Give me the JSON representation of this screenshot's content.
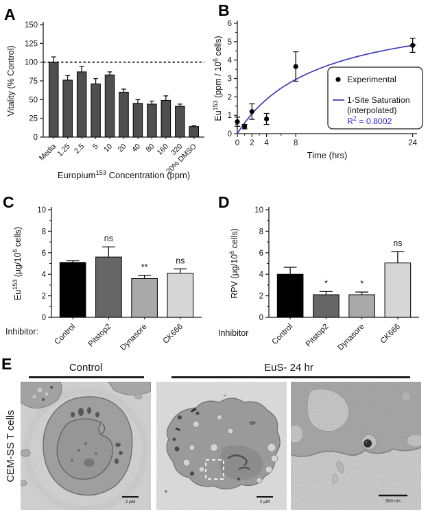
{
  "figure": {
    "background": "#ffffff",
    "axis_color": "#1a1a1a"
  },
  "panel_labels": {
    "A": "A",
    "B": "B",
    "C": "C",
    "D": "D",
    "E": "E"
  },
  "chart_data": [
    {
      "id": "A",
      "type": "bar",
      "ylabel": "Vitality (% Control)",
      "xlabel": "Europium^{153} Concentration (ppm)",
      "categories": [
        "Media",
        "1.25",
        "2.5",
        "5",
        "10",
        "20",
        "40",
        "80",
        "160",
        "320",
        "20% DMSO"
      ],
      "values": [
        100,
        76,
        87,
        71,
        83,
        60,
        45,
        44,
        49,
        41,
        14
      ],
      "errors": [
        7,
        6,
        7,
        7,
        4,
        4,
        5,
        4,
        6,
        3,
        1
      ],
      "ylim": [
        0,
        150
      ],
      "yticks": [
        0,
        25,
        50,
        75,
        100,
        125,
        150
      ],
      "bar_color": "#4f4f4f",
      "reference_line_y": 100,
      "grid": false
    },
    {
      "id": "B",
      "type": "scatter",
      "ylabel": "Eu^{153} (ppm / 10^{6} cells)",
      "xlabel": "Time (hrs)",
      "x": [
        0,
        1,
        2,
        4,
        8,
        24
      ],
      "y": [
        0.65,
        0.38,
        1.2,
        0.8,
        3.65,
        4.8
      ],
      "errors": [
        0.25,
        0.12,
        0.42,
        0.3,
        0.8,
        0.38
      ],
      "xlim": [
        0,
        24.6
      ],
      "ylim": [
        0,
        6
      ],
      "xticks": [
        0,
        2,
        4,
        8,
        24
      ],
      "xticks_minor": [
        1,
        3,
        6
      ],
      "yticks": [
        0,
        1,
        2,
        3,
        4,
        5,
        6
      ],
      "yticks_minor": [
        0.5,
        1.5,
        2.5,
        3.5,
        4.5,
        5.5
      ],
      "point_color": "#000000",
      "curve": {
        "model": "one-site-saturation",
        "bmax": 7.0,
        "kd": 11.0,
        "color": "#3b3bb8"
      },
      "legend": {
        "experimental_label": "Experimental",
        "fit_label_line1": "1-Site Saturation",
        "fit_label_line2": "(interpolated)",
        "r2_label": "R^{2} = 0.8002",
        "r2_color": "#2222cc"
      },
      "grid": false
    },
    {
      "id": "C",
      "type": "bar",
      "ylabel": "Eu^{153} (µg/10^{6} cells)",
      "row_label": "Inhibitor:",
      "categories": [
        "Control",
        "Pitstop2",
        "Dynasore",
        "CK666"
      ],
      "values": [
        5.1,
        5.6,
        3.6,
        4.1
      ],
      "errors": [
        0.15,
        0.95,
        0.3,
        0.4
      ],
      "significance": [
        "",
        "ns",
        "**",
        "ns"
      ],
      "bar_colors": [
        "#000000",
        "#666666",
        "#a9a9a9",
        "#d6d6d6"
      ],
      "ylim": [
        0,
        10
      ],
      "yticks": [
        0,
        2,
        4,
        6,
        8,
        10
      ],
      "yticks_minor": [
        1,
        3,
        5,
        7,
        9
      ],
      "grid": false
    },
    {
      "id": "D",
      "type": "bar",
      "ylabel": "RPV (µg/10^{6} cells)",
      "row_label": "Inhibitor",
      "categories": [
        "Control",
        "Pitstop2",
        "Dynasore",
        "CK666"
      ],
      "values": [
        4.0,
        2.1,
        2.1,
        5.05
      ],
      "errors": [
        0.65,
        0.3,
        0.25,
        1.05
      ],
      "significance": [
        "",
        "*",
        "*",
        "ns"
      ],
      "bar_colors": [
        "#000000",
        "#666666",
        "#a9a9a9",
        "#d6d6d6"
      ],
      "ylim": [
        0,
        10
      ],
      "yticks": [
        0,
        2,
        4,
        6,
        8,
        10
      ],
      "yticks_minor": [
        1,
        3,
        5,
        7,
        9
      ],
      "grid": false
    }
  ],
  "panel_e": {
    "row_label": "CEM-SS T cells",
    "group_titles": [
      "Control",
      "EuS- 24 hr"
    ],
    "scale_bars": [
      "2 µM",
      "2 µM",
      "500 nm"
    ]
  }
}
